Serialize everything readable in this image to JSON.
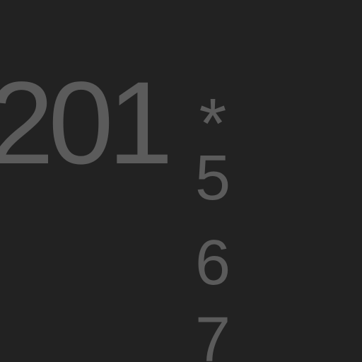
{
  "screen": {
    "year_prefix": "201",
    "wildcard_symbol": "*",
    "digit_options": [
      "5",
      "6",
      "7"
    ],
    "colors": {
      "background": "#222222",
      "text": "#5b5b5b"
    }
  }
}
